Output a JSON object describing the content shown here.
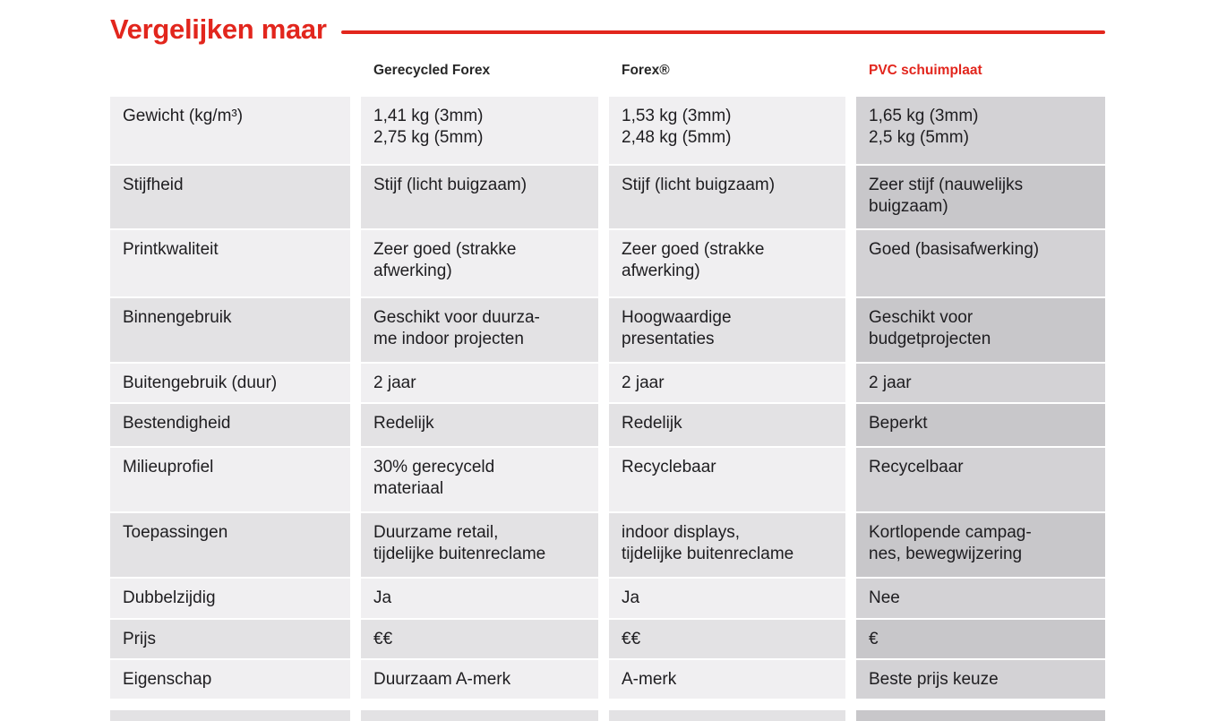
{
  "header": {
    "title": "Vergelijken maar"
  },
  "colors": {
    "accent_red": "#e2261d",
    "row_light": "#f0eff1",
    "row_dark": "#e3e2e4",
    "pvc_column_light": "#d3d2d5",
    "pvc_column_dark": "#c8c7ca",
    "text": "#1e1d20"
  },
  "table": {
    "column_headers": [
      {
        "label": "Gerecycled Forex",
        "accent": false
      },
      {
        "label": "Forex®",
        "accent": false
      },
      {
        "label": "PVC schuimplaat",
        "accent": true
      }
    ],
    "rows": [
      {
        "label": "Gewicht (kg/m³)",
        "values": [
          "1,41 kg (3mm)\n2,75 kg (5mm)",
          "1,53 kg (3mm)\n2,48 kg (5mm)",
          "1,65 kg (3mm)\n2,5 kg (5mm)"
        ]
      },
      {
        "label": "Stijfheid",
        "values": [
          "Stijf (licht buigzaam)",
          "Stijf (licht buigzaam)",
          "Zeer stijf (nauwelijks\nbuigzaam)"
        ]
      },
      {
        "label": "Printkwaliteit",
        "values": [
          "Zeer goed (strakke\nafwerking)",
          "Zeer goed (strakke\nafwerking)",
          "Goed (basisafwerking)"
        ]
      },
      {
        "label": "Binnengebruik",
        "values": [
          "Geschikt voor duurza-\nme indoor projecten",
          "Hoogwaardige\npresentaties",
          "Geschikt voor\nbudgetprojecten"
        ]
      },
      {
        "label": "Buitengebruik (duur)",
        "values": [
          "2 jaar",
          "2 jaar",
          "2 jaar"
        ]
      },
      {
        "label": "Bestendigheid",
        "values": [
          "Redelijk",
          "Redelijk",
          "Beperkt"
        ]
      },
      {
        "label": "Milieuprofiel",
        "values": [
          "30% gerecyceld\nmateriaal",
          "Recyclebaar",
          "Recycelbaar"
        ]
      },
      {
        "label": "Toepassingen",
        "values": [
          "Duurzame retail,\ntijdelijke buitenreclame",
          "indoor displays,\ntijdelijke buitenreclame",
          "Kortlopende campag-\nnes, bewegwijzering"
        ]
      },
      {
        "label": "Dubbelzijdig",
        "values": [
          "Ja",
          "Ja",
          "Nee"
        ]
      },
      {
        "label": "Prijs",
        "values": [
          "€€",
          "€€",
          "€"
        ]
      },
      {
        "label": "Eigenschap",
        "values": [
          "Duurzaam A-merk",
          "A-merk",
          "Beste prijs keuze"
        ]
      }
    ]
  }
}
